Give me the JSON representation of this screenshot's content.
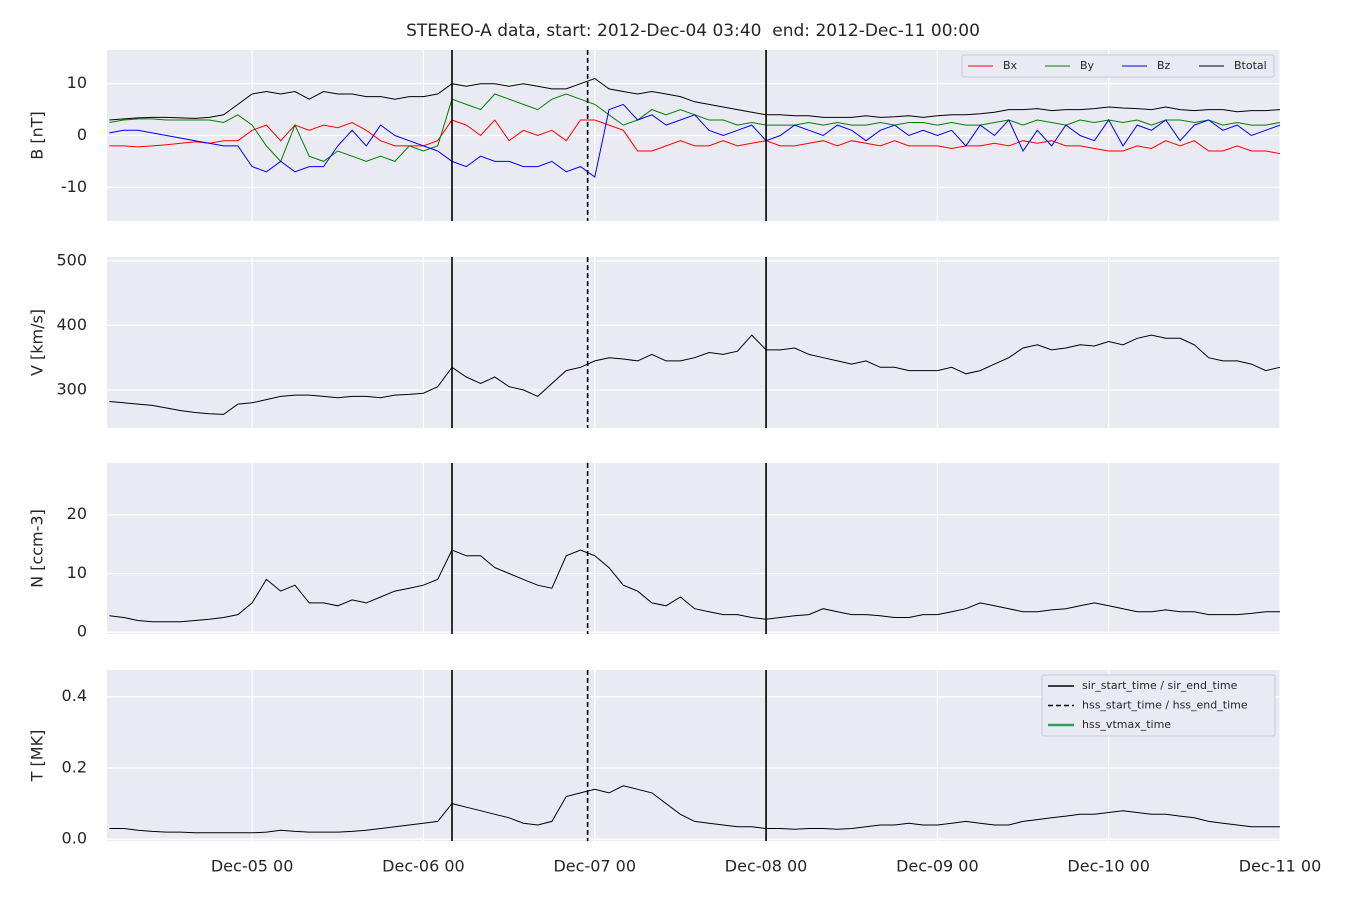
{
  "chart_data": {
    "type": "line",
    "title": "STEREO-A data, start: 2012-Dec-04 03:40  end: 2012-Dec-11 00:00",
    "xlim": [
      "Dec-04 03:40",
      "Dec-11 00:00"
    ],
    "xticks": [
      "Dec-05 00",
      "Dec-06 00",
      "Dec-07 00",
      "Dec-08 00",
      "Dec-09 00",
      "Dec-10 00",
      "Dec-11 00"
    ],
    "grid": true,
    "x": [
      "Dec-04 04",
      "Dec-04 06",
      "Dec-04 08",
      "Dec-04 10",
      "Dec-04 12",
      "Dec-04 14",
      "Dec-04 16",
      "Dec-04 18",
      "Dec-04 20",
      "Dec-04 22",
      "Dec-05 00",
      "Dec-05 02",
      "Dec-05 04",
      "Dec-05 06",
      "Dec-05 08",
      "Dec-05 10",
      "Dec-05 12",
      "Dec-05 14",
      "Dec-05 16",
      "Dec-05 18",
      "Dec-05 20",
      "Dec-05 22",
      "Dec-06 00",
      "Dec-06 02",
      "Dec-06 04",
      "Dec-06 06",
      "Dec-06 08",
      "Dec-06 10",
      "Dec-06 12",
      "Dec-06 14",
      "Dec-06 16",
      "Dec-06 18",
      "Dec-06 20",
      "Dec-06 22",
      "Dec-07 00",
      "Dec-07 02",
      "Dec-07 04",
      "Dec-07 06",
      "Dec-07 08",
      "Dec-07 10",
      "Dec-07 12",
      "Dec-07 14",
      "Dec-07 16",
      "Dec-07 18",
      "Dec-07 20",
      "Dec-07 22",
      "Dec-08 00",
      "Dec-08 02",
      "Dec-08 04",
      "Dec-08 06",
      "Dec-08 08",
      "Dec-08 10",
      "Dec-08 12",
      "Dec-08 14",
      "Dec-08 16",
      "Dec-08 18",
      "Dec-08 20",
      "Dec-08 22",
      "Dec-09 00",
      "Dec-09 02",
      "Dec-09 04",
      "Dec-09 06",
      "Dec-09 08",
      "Dec-09 10",
      "Dec-09 12",
      "Dec-09 14",
      "Dec-09 16",
      "Dec-09 18",
      "Dec-09 20",
      "Dec-09 22",
      "Dec-10 00",
      "Dec-10 02",
      "Dec-10 04",
      "Dec-10 06",
      "Dec-10 08",
      "Dec-10 10",
      "Dec-10 12",
      "Dec-10 14",
      "Dec-10 16",
      "Dec-10 18",
      "Dec-10 20",
      "Dec-10 22",
      "Dec-11 00"
    ],
    "markers": [
      {
        "name": "sir_start_time / sir_end_time",
        "color": "#000000",
        "style": "solid",
        "times": [
          "Dec-06 04",
          "Dec-08 00"
        ]
      },
      {
        "name": "hss_start_time / hss_end_time",
        "color": "#000000",
        "style": "dashed",
        "times": [
          "Dec-06 23"
        ]
      },
      {
        "name": "hss_vtmax_time",
        "color": "#2ca25f",
        "style": "solid",
        "times": []
      }
    ],
    "panels": [
      {
        "ylabel": "B [nT]",
        "ylim": [
          -16.5,
          16.5
        ],
        "yticks": [
          -10,
          0,
          10
        ],
        "legend": "upper right",
        "series": [
          {
            "name": "Bx",
            "color": "#ff0000",
            "values": [
              -2,
              -2,
              -2.2,
              -2,
              -1.8,
              -1.5,
              -1.2,
              -1.5,
              -1,
              -1,
              1,
              2,
              -1,
              2,
              1,
              2,
              1.5,
              2.5,
              1,
              -1,
              -2,
              -2,
              -2,
              -1,
              3,
              2,
              0,
              3,
              -1,
              1,
              0,
              1,
              -1,
              3,
              3,
              2,
              1,
              -3,
              -3,
              -2,
              -1,
              -2,
              -2,
              -1,
              -2,
              -1.5,
              -1,
              -2,
              -2,
              -1.5,
              -1,
              -2,
              -1,
              -1.5,
              -2,
              -1,
              -2,
              -2,
              -2,
              -2.5,
              -2,
              -2,
              -1.5,
              -2,
              -1,
              -1.5,
              -1,
              -2,
              -2,
              -2.5,
              -3,
              -3,
              -2,
              -2.5,
              -1,
              -2,
              -1,
              -3,
              -3,
              -2,
              -3,
              -3,
              -3.5
            ]
          },
          {
            "name": "By",
            "color": "#008000",
            "values": [
              2.5,
              3,
              3.2,
              3.2,
              3,
              3,
              3,
              3,
              2.5,
              4,
              2,
              -2,
              -5,
              2,
              -4,
              -5,
              -3,
              -4,
              -5,
              -4,
              -5,
              -2,
              -3,
              -2,
              7,
              6,
              5,
              8,
              7,
              6,
              5,
              7,
              8,
              7,
              6,
              4,
              2,
              3,
              5,
              4,
              5,
              4,
              3,
              3,
              2,
              2.5,
              2,
              2,
              2,
              2.5,
              2,
              2.5,
              2,
              2,
              2.5,
              2,
              2.5,
              2.5,
              2,
              2.5,
              2,
              2,
              2.5,
              3,
              2,
              3,
              2.5,
              2,
              3,
              2.5,
              3,
              2.5,
              3,
              2,
              3,
              3,
              2.5,
              3,
              2,
              2.5,
              2,
              2,
              2.5
            ]
          },
          {
            "name": "Bz",
            "color": "#0000ff",
            "values": [
              0.5,
              1,
              1,
              0.5,
              0,
              -0.5,
              -1,
              -1.5,
              -2,
              -2,
              -6,
              -7,
              -5,
              -7,
              -6,
              -6,
              -2,
              1,
              -2,
              2,
              0,
              -1,
              -2,
              -3,
              -5,
              -6,
              -4,
              -5,
              -5,
              -6,
              -6,
              -5,
              -7,
              -6,
              -8,
              5,
              6,
              3,
              4,
              2,
              3,
              4,
              1,
              0,
              1,
              2,
              -1,
              0,
              2,
              1,
              0,
              2,
              1,
              -1,
              1,
              2,
              0,
              1,
              0,
              1,
              -2,
              2,
              0,
              3,
              -3,
              1,
              -2,
              2,
              0,
              -1,
              3,
              -2,
              2,
              1,
              3,
              -1,
              2,
              3,
              1,
              2,
              0,
              1,
              2
            ]
          },
          {
            "name": "Btotal",
            "color": "#000000",
            "values": [
              3,
              3.2,
              3.4,
              3.5,
              3.5,
              3.4,
              3.3,
              3.5,
              4,
              6,
              8,
              8.5,
              8,
              8.5,
              7,
              8.5,
              8,
              8,
              7.5,
              7.5,
              7,
              7.5,
              7.5,
              8,
              10,
              9.5,
              10,
              10,
              9.5,
              10,
              9.5,
              9,
              9,
              10,
              11,
              9,
              8.5,
              8,
              8.5,
              8,
              7.5,
              6.5,
              6,
              5.5,
              5,
              4.5,
              4,
              4,
              3.8,
              3.8,
              3.5,
              3.5,
              3.5,
              3.8,
              3.5,
              3.6,
              3.8,
              3.5,
              3.8,
              4,
              4,
              4.2,
              4.5,
              5,
              5,
              5.2,
              4.8,
              5,
              5,
              5.2,
              5.5,
              5.3,
              5.2,
              5,
              5.5,
              5,
              4.8,
              5,
              5,
              4.6,
              4.8,
              4.8,
              5
            ]
          }
        ]
      },
      {
        "ylabel": "V [km/s]",
        "ylim": [
          241,
          506
        ],
        "yticks": [
          300,
          400,
          500
        ],
        "series": [
          {
            "color": "#000000",
            "values": [
              282,
              280,
              278,
              276,
              272,
              268,
              265,
              263,
              262,
              278,
              280,
              285,
              290,
              292,
              292,
              290,
              288,
              290,
              290,
              288,
              292,
              293,
              295,
              305,
              335,
              320,
              310,
              320,
              305,
              300,
              290,
              310,
              330,
              335,
              345,
              350,
              348,
              345,
              355,
              345,
              345,
              350,
              358,
              355,
              360,
              385,
              362,
              362,
              365,
              355,
              350,
              345,
              340,
              345,
              335,
              335,
              330,
              330,
              330,
              335,
              325,
              330,
              340,
              350,
              365,
              370,
              362,
              365,
              370,
              368,
              375,
              370,
              380,
              385,
              380,
              380,
              370,
              350,
              345,
              345,
              340,
              330,
              335
            ]
          }
        ]
      },
      {
        "ylabel": "N [ccm-3]",
        "ylim": [
          -0.3,
          28.8
        ],
        "yticks": [
          0,
          10,
          20
        ],
        "series": [
          {
            "color": "#000000",
            "values": [
              2.8,
              2.5,
              2,
              1.8,
              1.8,
              1.8,
              2,
              2.2,
              2.5,
              3,
              5,
              9,
              7,
              8,
              5,
              5,
              4.5,
              5.5,
              5,
              6,
              7,
              7.5,
              8,
              9,
              14,
              13,
              13,
              11,
              10,
              9,
              8,
              7.5,
              13,
              14,
              13,
              11,
              8,
              7,
              5,
              4.5,
              6,
              4,
              3.5,
              3,
              3,
              2.5,
              2.2,
              2.5,
              2.8,
              3,
              4,
              3.5,
              3,
              3,
              2.8,
              2.5,
              2.5,
              3,
              3,
              3.5,
              4,
              5,
              4.5,
              4,
              3.5,
              3.5,
              3.8,
              4,
              4.5,
              5,
              4.5,
              4,
              3.5,
              3.5,
              3.8,
              3.5,
              3.5,
              3,
              3,
              3,
              3.2,
              3.5,
              3.5
            ]
          }
        ]
      },
      {
        "ylabel": "T [MK]",
        "ylim": [
          -0.005,
          0.475
        ],
        "yticks": [
          {
            "value": 0,
            "label": "0.0"
          },
          0.2,
          0.4
        ],
        "legend": "upper right",
        "series": [
          {
            "color": "#000000",
            "values": [
              0.03,
              0.03,
              0.025,
              0.022,
              0.02,
              0.02,
              0.018,
              0.018,
              0.018,
              0.018,
              0.018,
              0.02,
              0.025,
              0.022,
              0.02,
              0.02,
              0.02,
              0.022,
              0.025,
              0.03,
              0.035,
              0.04,
              0.045,
              0.05,
              0.1,
              0.09,
              0.08,
              0.07,
              0.06,
              0.045,
              0.04,
              0.05,
              0.12,
              0.13,
              0.14,
              0.13,
              0.15,
              0.14,
              0.13,
              0.1,
              0.07,
              0.05,
              0.045,
              0.04,
              0.035,
              0.035,
              0.03,
              0.03,
              0.028,
              0.03,
              0.03,
              0.028,
              0.03,
              0.035,
              0.04,
              0.04,
              0.045,
              0.04,
              0.04,
              0.045,
              0.05,
              0.045,
              0.04,
              0.04,
              0.05,
              0.055,
              0.06,
              0.065,
              0.07,
              0.07,
              0.075,
              0.08,
              0.075,
              0.07,
              0.07,
              0.065,
              0.06,
              0.05,
              0.045,
              0.04,
              0.035,
              0.035,
              0.035
            ]
          }
        ]
      }
    ]
  }
}
